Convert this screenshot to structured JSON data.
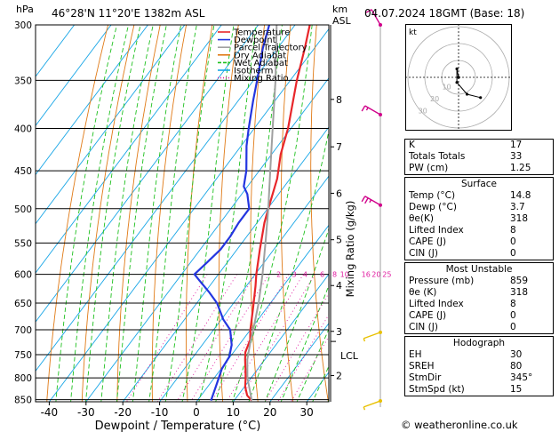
{
  "header": {
    "location": "46°28'N  11°20'E  1382m  ASL",
    "datetime": "04.07.2024  18GMT  (Base: 18)",
    "hpa_label": "hPa",
    "km_label": "km",
    "asl_label": "ASL"
  },
  "legend": [
    "Temperature",
    "Dewpoint",
    "Parcel Trajectory",
    "Dry Adiabat",
    "Wet Adiabat",
    "Isotherm",
    "Mixing Ratio"
  ],
  "colors": {
    "temperature": "#e8262a",
    "dewpoint": "#2436e0",
    "parcel": "#a0a0a0",
    "dry_adiabat": "#e07a16",
    "wet_adiabat": "#1ec01e",
    "isotherm": "#18a6e6",
    "mixing_ratio": "#e01aa0",
    "wind": "#d0008a",
    "wind_low": "#e8c000"
  },
  "chart_data": {
    "type": "line",
    "title": "",
    "xlabel": "Dewpoint / Temperature (°C)",
    "ylabel_right": "Mixing Ratio (g/kg)",
    "x_ticks": [
      -40,
      -30,
      -20,
      -10,
      0,
      10,
      20,
      30
    ],
    "p_levels": [
      300,
      350,
      400,
      450,
      500,
      550,
      600,
      650,
      700,
      750,
      800,
      850
    ],
    "km_ticks": [
      {
        "label": "2",
        "p": 795
      },
      {
        "label": "3",
        "p": 703
      },
      {
        "label": "4",
        "p": 619
      },
      {
        "label": "5",
        "p": 545
      },
      {
        "label": "6",
        "p": 479
      },
      {
        "label": "7",
        "p": 421
      },
      {
        "label": "8",
        "p": 369
      }
    ],
    "lcl": {
      "label": "LCL",
      "p": 723
    },
    "mixing_ratio_labels": [
      {
        "label": "2",
        "t": -3.6
      },
      {
        "label": "3",
        "t": 0.6
      },
      {
        "label": "4",
        "t": 3.6
      },
      {
        "label": "6",
        "t": 8.2
      },
      {
        "label": "8",
        "t": 11.6
      },
      {
        "label": "10",
        "t": 14.3
      },
      {
        "label": "16",
        "t": 20.1
      },
      {
        "label": "20",
        "t": 22.9
      },
      {
        "label": "25",
        "t": 25.8
      }
    ],
    "series": [
      {
        "name": "Temperature",
        "key": "temperature",
        "points": [
          [
            852,
            14.8
          ],
          [
            840,
            12.5
          ],
          [
            820,
            10.2
          ],
          [
            800,
            8.5
          ],
          [
            780,
            6.6
          ],
          [
            760,
            4.6
          ],
          [
            745,
            3.2
          ],
          [
            720,
            2.0
          ],
          [
            700,
            0.0
          ],
          [
            660,
            -3.6
          ],
          [
            620,
            -7.5
          ],
          [
            600,
            -9.7
          ],
          [
            560,
            -13.8
          ],
          [
            520,
            -18.0
          ],
          [
            500,
            -19.8
          ],
          [
            460,
            -23.5
          ],
          [
            430,
            -27.5
          ],
          [
            400,
            -30.8
          ],
          [
            350,
            -38.2
          ],
          [
            320,
            -42.6
          ],
          [
            300,
            -46.0
          ]
        ]
      },
      {
        "name": "Dewpoint",
        "key": "dewpoint",
        "points": [
          [
            852,
            3.7
          ],
          [
            820,
            2.2
          ],
          [
            800,
            1.2
          ],
          [
            780,
            0.2
          ],
          [
            755,
            -0.2
          ],
          [
            730,
            -2.0
          ],
          [
            700,
            -5.5
          ],
          [
            680,
            -9.5
          ],
          [
            650,
            -14.5
          ],
          [
            630,
            -19.0
          ],
          [
            610,
            -24.0
          ],
          [
            600,
            -26.5
          ],
          [
            580,
            -25.5
          ],
          [
            560,
            -24.5
          ],
          [
            540,
            -24.5
          ],
          [
            520,
            -25.0
          ],
          [
            500,
            -25.0
          ],
          [
            480,
            -28.5
          ],
          [
            470,
            -31.0
          ],
          [
            450,
            -33.5
          ],
          [
            420,
            -38.5
          ],
          [
            400,
            -41.5
          ],
          [
            370,
            -46.0
          ],
          [
            350,
            -49.0
          ],
          [
            320,
            -54.0
          ],
          [
            300,
            -57.0
          ]
        ]
      },
      {
        "name": "Parcel Trajectory",
        "key": "parcel",
        "points": [
          [
            852,
            14.8
          ],
          [
            800,
            9.0
          ],
          [
            760,
            5.2
          ],
          [
            723,
            2.4
          ],
          [
            700,
            0.8
          ],
          [
            650,
            -3.2
          ],
          [
            600,
            -8.0
          ],
          [
            550,
            -13.6
          ],
          [
            500,
            -19.8
          ],
          [
            450,
            -27.0
          ],
          [
            400,
            -35.0
          ],
          [
            350,
            -44.0
          ],
          [
            300,
            -55.0
          ]
        ]
      }
    ],
    "winds": [
      {
        "p": 300,
        "dir": 330,
        "spd": 10,
        "key": "wind"
      },
      {
        "p": 385,
        "dir": 300,
        "spd": 15,
        "key": "wind"
      },
      {
        "p": 495,
        "dir": 300,
        "spd": 25,
        "key": "wind"
      },
      {
        "p": 705,
        "dir": 250,
        "spd": 5,
        "key": "wind_low"
      },
      {
        "p": 853,
        "dir": 250,
        "spd": 5,
        "key": "wind_low"
      }
    ],
    "hodograph": {
      "label": "kt",
      "ring_labels": [
        "10",
        "20",
        "30"
      ],
      "points": [
        [
          0,
          0
        ],
        [
          -1,
          5
        ],
        [
          -1,
          -3
        ],
        [
          5,
          -10
        ],
        [
          13,
          -12
        ]
      ]
    }
  },
  "indices": [
    {
      "label": "K",
      "value": "17"
    },
    {
      "label": "Totals Totals",
      "value": "33"
    },
    {
      "label": "PW (cm)",
      "value": "1.25"
    }
  ],
  "surface": {
    "title": "Surface",
    "rows": [
      {
        "label": "Temp (°C)",
        "value": "14.8"
      },
      {
        "label": "Dewp (°C)",
        "value": "3.7"
      },
      {
        "label": "θe(K)",
        "value": "318"
      },
      {
        "label": "Lifted Index",
        "value": "8"
      },
      {
        "label": "CAPE (J)",
        "value": "0"
      },
      {
        "label": "CIN (J)",
        "value": "0"
      }
    ]
  },
  "most_unstable": {
    "title": "Most Unstable",
    "rows": [
      {
        "label": "Pressure (mb)",
        "value": "859"
      },
      {
        "label": "θe (K)",
        "value": "318"
      },
      {
        "label": "Lifted Index",
        "value": "8"
      },
      {
        "label": "CAPE (J)",
        "value": "0"
      },
      {
        "label": "CIN (J)",
        "value": "0"
      }
    ]
  },
  "hodograph_table": {
    "title": "Hodograph",
    "rows": [
      {
        "label": "EH",
        "value": "30"
      },
      {
        "label": "SREH",
        "value": "80"
      },
      {
        "label": "StmDir",
        "value": "345°"
      },
      {
        "label": "StmSpd (kt)",
        "value": "15"
      }
    ]
  },
  "footer": "© weatheronline.co.uk"
}
